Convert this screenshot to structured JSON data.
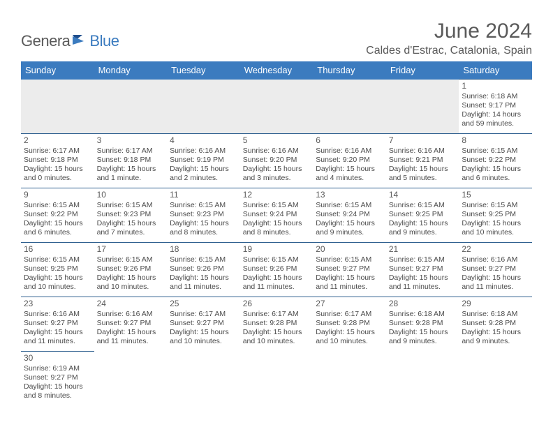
{
  "logo": {
    "part1": "Genera",
    "part2": "Blue"
  },
  "title": "June 2024",
  "location": "Caldes d'Estrac, Catalonia, Spain",
  "colors": {
    "header_bg": "#3b7bbf",
    "header_text": "#ffffff",
    "cell_border": "#2e5f8f",
    "blank_bg": "#ececec",
    "text": "#4a4a4a",
    "title_text": "#5a5a5a"
  },
  "day_headers": [
    "Sunday",
    "Monday",
    "Tuesday",
    "Wednesday",
    "Thursday",
    "Friday",
    "Saturday"
  ],
  "weeks": [
    [
      null,
      null,
      null,
      null,
      null,
      null,
      {
        "n": "1",
        "sr": "Sunrise: 6:18 AM",
        "ss": "Sunset: 9:17 PM",
        "d1": "Daylight: 14 hours",
        "d2": "and 59 minutes."
      }
    ],
    [
      {
        "n": "2",
        "sr": "Sunrise: 6:17 AM",
        "ss": "Sunset: 9:18 PM",
        "d1": "Daylight: 15 hours",
        "d2": "and 0 minutes."
      },
      {
        "n": "3",
        "sr": "Sunrise: 6:17 AM",
        "ss": "Sunset: 9:18 PM",
        "d1": "Daylight: 15 hours",
        "d2": "and 1 minute."
      },
      {
        "n": "4",
        "sr": "Sunrise: 6:16 AM",
        "ss": "Sunset: 9:19 PM",
        "d1": "Daylight: 15 hours",
        "d2": "and 2 minutes."
      },
      {
        "n": "5",
        "sr": "Sunrise: 6:16 AM",
        "ss": "Sunset: 9:20 PM",
        "d1": "Daylight: 15 hours",
        "d2": "and 3 minutes."
      },
      {
        "n": "6",
        "sr": "Sunrise: 6:16 AM",
        "ss": "Sunset: 9:20 PM",
        "d1": "Daylight: 15 hours",
        "d2": "and 4 minutes."
      },
      {
        "n": "7",
        "sr": "Sunrise: 6:16 AM",
        "ss": "Sunset: 9:21 PM",
        "d1": "Daylight: 15 hours",
        "d2": "and 5 minutes."
      },
      {
        "n": "8",
        "sr": "Sunrise: 6:15 AM",
        "ss": "Sunset: 9:22 PM",
        "d1": "Daylight: 15 hours",
        "d2": "and 6 minutes."
      }
    ],
    [
      {
        "n": "9",
        "sr": "Sunrise: 6:15 AM",
        "ss": "Sunset: 9:22 PM",
        "d1": "Daylight: 15 hours",
        "d2": "and 6 minutes."
      },
      {
        "n": "10",
        "sr": "Sunrise: 6:15 AM",
        "ss": "Sunset: 9:23 PM",
        "d1": "Daylight: 15 hours",
        "d2": "and 7 minutes."
      },
      {
        "n": "11",
        "sr": "Sunrise: 6:15 AM",
        "ss": "Sunset: 9:23 PM",
        "d1": "Daylight: 15 hours",
        "d2": "and 8 minutes."
      },
      {
        "n": "12",
        "sr": "Sunrise: 6:15 AM",
        "ss": "Sunset: 9:24 PM",
        "d1": "Daylight: 15 hours",
        "d2": "and 8 minutes."
      },
      {
        "n": "13",
        "sr": "Sunrise: 6:15 AM",
        "ss": "Sunset: 9:24 PM",
        "d1": "Daylight: 15 hours",
        "d2": "and 9 minutes."
      },
      {
        "n": "14",
        "sr": "Sunrise: 6:15 AM",
        "ss": "Sunset: 9:25 PM",
        "d1": "Daylight: 15 hours",
        "d2": "and 9 minutes."
      },
      {
        "n": "15",
        "sr": "Sunrise: 6:15 AM",
        "ss": "Sunset: 9:25 PM",
        "d1": "Daylight: 15 hours",
        "d2": "and 10 minutes."
      }
    ],
    [
      {
        "n": "16",
        "sr": "Sunrise: 6:15 AM",
        "ss": "Sunset: 9:25 PM",
        "d1": "Daylight: 15 hours",
        "d2": "and 10 minutes."
      },
      {
        "n": "17",
        "sr": "Sunrise: 6:15 AM",
        "ss": "Sunset: 9:26 PM",
        "d1": "Daylight: 15 hours",
        "d2": "and 10 minutes."
      },
      {
        "n": "18",
        "sr": "Sunrise: 6:15 AM",
        "ss": "Sunset: 9:26 PM",
        "d1": "Daylight: 15 hours",
        "d2": "and 11 minutes."
      },
      {
        "n": "19",
        "sr": "Sunrise: 6:15 AM",
        "ss": "Sunset: 9:26 PM",
        "d1": "Daylight: 15 hours",
        "d2": "and 11 minutes."
      },
      {
        "n": "20",
        "sr": "Sunrise: 6:15 AM",
        "ss": "Sunset: 9:27 PM",
        "d1": "Daylight: 15 hours",
        "d2": "and 11 minutes."
      },
      {
        "n": "21",
        "sr": "Sunrise: 6:15 AM",
        "ss": "Sunset: 9:27 PM",
        "d1": "Daylight: 15 hours",
        "d2": "and 11 minutes."
      },
      {
        "n": "22",
        "sr": "Sunrise: 6:16 AM",
        "ss": "Sunset: 9:27 PM",
        "d1": "Daylight: 15 hours",
        "d2": "and 11 minutes."
      }
    ],
    [
      {
        "n": "23",
        "sr": "Sunrise: 6:16 AM",
        "ss": "Sunset: 9:27 PM",
        "d1": "Daylight: 15 hours",
        "d2": "and 11 minutes."
      },
      {
        "n": "24",
        "sr": "Sunrise: 6:16 AM",
        "ss": "Sunset: 9:27 PM",
        "d1": "Daylight: 15 hours",
        "d2": "and 11 minutes."
      },
      {
        "n": "25",
        "sr": "Sunrise: 6:17 AM",
        "ss": "Sunset: 9:27 PM",
        "d1": "Daylight: 15 hours",
        "d2": "and 10 minutes."
      },
      {
        "n": "26",
        "sr": "Sunrise: 6:17 AM",
        "ss": "Sunset: 9:28 PM",
        "d1": "Daylight: 15 hours",
        "d2": "and 10 minutes."
      },
      {
        "n": "27",
        "sr": "Sunrise: 6:17 AM",
        "ss": "Sunset: 9:28 PM",
        "d1": "Daylight: 15 hours",
        "d2": "and 10 minutes."
      },
      {
        "n": "28",
        "sr": "Sunrise: 6:18 AM",
        "ss": "Sunset: 9:28 PM",
        "d1": "Daylight: 15 hours",
        "d2": "and 9 minutes."
      },
      {
        "n": "29",
        "sr": "Sunrise: 6:18 AM",
        "ss": "Sunset: 9:28 PM",
        "d1": "Daylight: 15 hours",
        "d2": "and 9 minutes."
      }
    ],
    [
      {
        "n": "30",
        "sr": "Sunrise: 6:19 AM",
        "ss": "Sunset: 9:27 PM",
        "d1": "Daylight: 15 hours",
        "d2": "and 8 minutes."
      },
      null,
      null,
      null,
      null,
      null,
      null
    ]
  ]
}
